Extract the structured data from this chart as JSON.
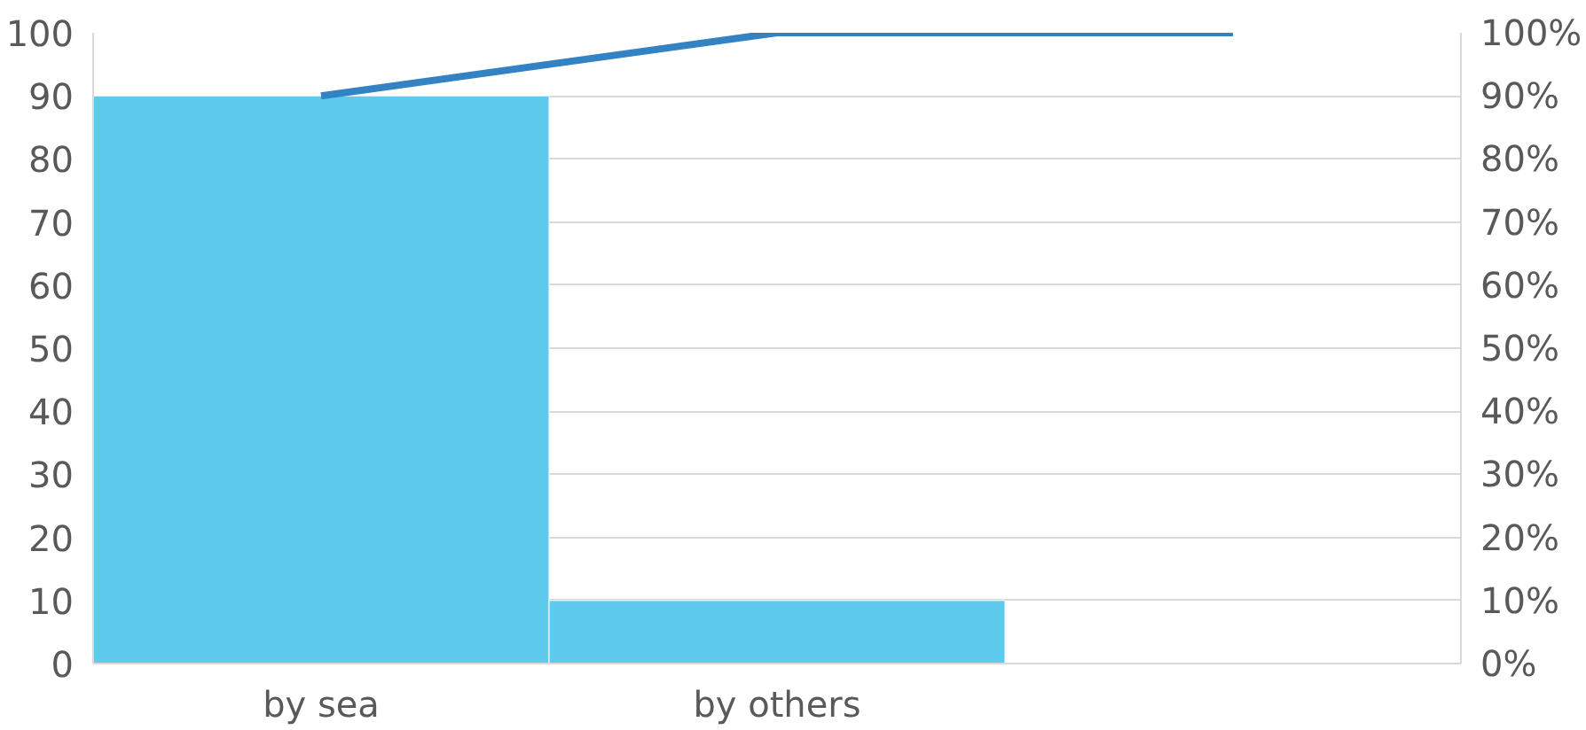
{
  "chart_data": {
    "type": "bar",
    "categories": [
      "by sea",
      "by others",
      null
    ],
    "series": [
      {
        "color": "#5ecaee",
        "values": [
          90,
          10,
          null
        ]
      },
      {
        "type": "line",
        "axis": "y2",
        "color": "#3282c4",
        "values": [
          0.9,
          1,
          1
        ]
      }
    ],
    "ylim": [
      0,
      100
    ],
    "yticks": [
      0,
      10,
      20,
      30,
      40,
      50,
      60,
      70,
      80,
      90,
      100
    ],
    "y2lim": [
      0,
      1
    ],
    "y2ticks": [
      {
        "value": 0,
        "label": "0%"
      },
      {
        "value": 0.1,
        "label": "10%"
      },
      {
        "value": 0.2,
        "label": "20%"
      },
      {
        "value": 0.3,
        "label": "30%"
      },
      {
        "value": 0.4,
        "label": "40%"
      },
      {
        "value": 0.5,
        "label": "50%"
      },
      {
        "value": 0.6,
        "label": "60%"
      },
      {
        "value": 0.7,
        "label": "70%"
      },
      {
        "value": 0.8,
        "label": "80%"
      },
      {
        "value": 0.9,
        "label": "90%"
      },
      {
        "value": 1,
        "label": "100%"
      }
    ],
    "grid": "y",
    "marker": "none",
    "line_style": "solid"
  }
}
